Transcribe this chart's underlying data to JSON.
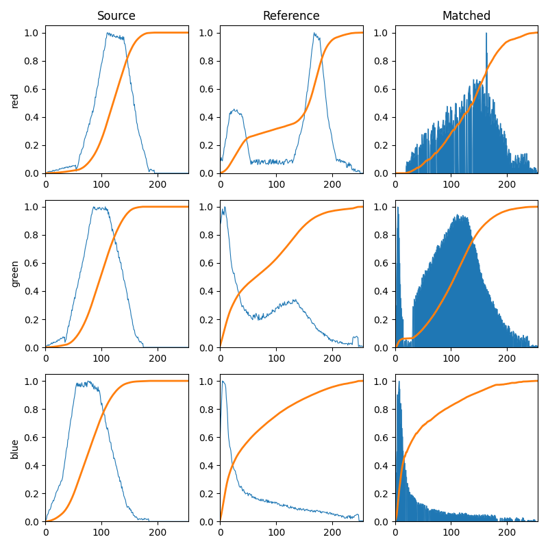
{
  "col_titles": [
    "Source",
    "Reference",
    "Matched"
  ],
  "row_labels": [
    "red",
    "green",
    "blue"
  ],
  "figsize": [
    8.0,
    8.0
  ],
  "dpi": 100,
  "blue_color": "#1f77b4",
  "orange_color": "#ff7f0e",
  "xlim": [
    0,
    255
  ],
  "ylim": [
    0.0,
    1.05
  ],
  "yticks": [
    0.0,
    0.2,
    0.4,
    0.6,
    0.8,
    1.0
  ],
  "xticks": [
    0,
    100,
    200
  ],
  "title_fontsize": 12,
  "label_fontsize": 10
}
